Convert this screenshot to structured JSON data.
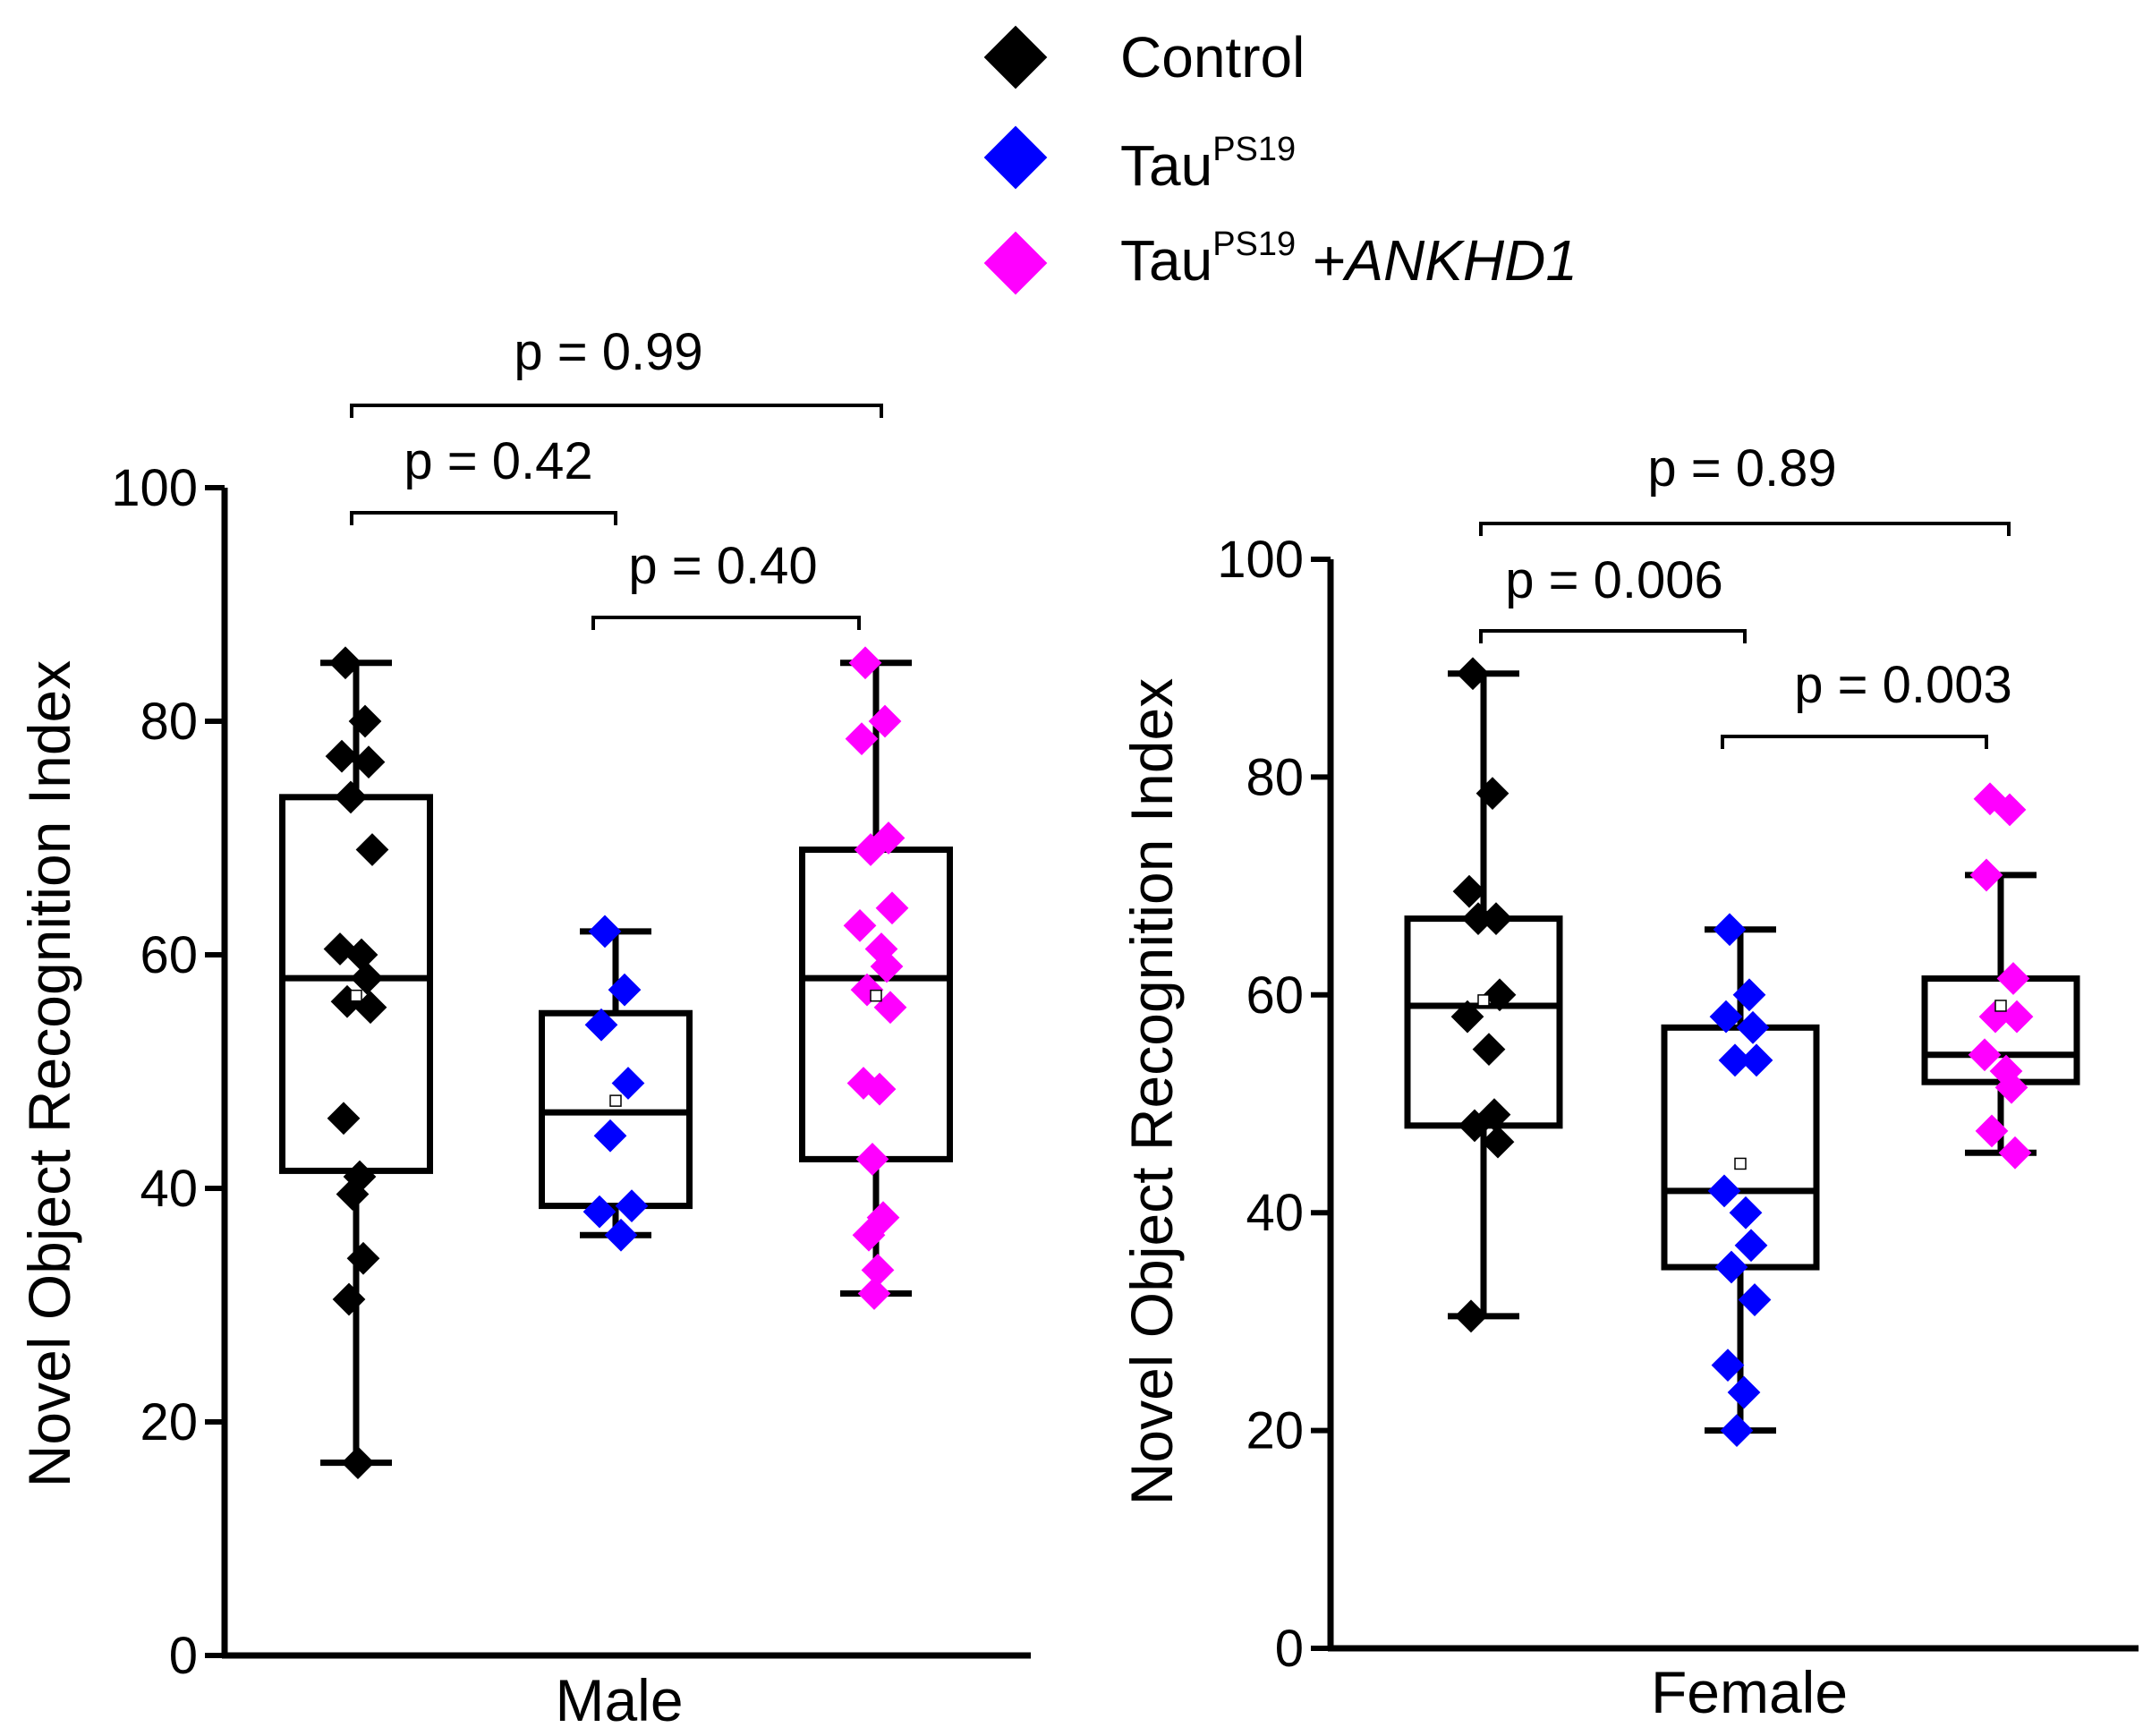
{
  "legend": [
    {
      "label": "Control",
      "sup": "",
      "suffix": "",
      "color": "#000000"
    },
    {
      "label": "Tau",
      "sup": "PS19",
      "suffix": "",
      "color": "#0000ff"
    },
    {
      "label": "Tau",
      "sup": "PS19",
      "suffix": " +ANKHD1",
      "color": "#ff00ff"
    }
  ],
  "chart_data": [
    {
      "type": "box",
      "title": "",
      "xlabel": "Male",
      "ylabel": "Novel Object Recognition Index",
      "ylim": [
        0,
        100
      ],
      "yticks": [
        0,
        20,
        40,
        60,
        80,
        100
      ],
      "series": [
        {
          "name": "Control",
          "color": "#000000",
          "box": {
            "min": 16.5,
            "q1": 41.5,
            "median": 58,
            "q3": 73.5,
            "max": 85,
            "mean": 56.5
          },
          "points": [
            85,
            80,
            77,
            76.5,
            73.5,
            69,
            60.5,
            60,
            58,
            56,
            55.5,
            46,
            41,
            39.5,
            34,
            30.5,
            16.5
          ]
        },
        {
          "name": "TauPS19",
          "color": "#0000ff",
          "box": {
            "min": 36,
            "q1": 38.5,
            "median": 46.5,
            "q3": 55,
            "max": 62,
            "mean": 47.5
          },
          "points": [
            62,
            57,
            54,
            49,
            44.5,
            38.5,
            38,
            36
          ]
        },
        {
          "name": "TauPS19 +ANKHD1",
          "color": "#ff00ff",
          "box": {
            "min": 31,
            "q1": 42.5,
            "median": 58,
            "q3": 69,
            "max": 85,
            "mean": 56.5
          },
          "points": [
            85,
            80,
            78.5,
            70,
            69,
            64,
            62.5,
            60.5,
            59,
            57,
            55.5,
            49,
            48.5,
            42.5,
            37.5,
            36,
            33,
            31
          ]
        }
      ],
      "comparisons": [
        {
          "label": "p = 0.99",
          "from": 0,
          "to": 2
        },
        {
          "label": "p = 0.42",
          "from": 0,
          "to": 1
        },
        {
          "label": "p = 0.40",
          "from": 1,
          "to": 2
        }
      ]
    },
    {
      "type": "box",
      "title": "",
      "xlabel": "Female",
      "ylabel": "Novel Object Recognition Index",
      "ylim": [
        0,
        100
      ],
      "yticks": [
        0,
        20,
        40,
        60,
        80,
        100
      ],
      "series": [
        {
          "name": "Control",
          "color": "#000000",
          "box": {
            "min": 30.5,
            "q1": 48,
            "median": 59,
            "q3": 67,
            "max": 89.5,
            "mean": 59.5
          },
          "points": [
            89.5,
            78.5,
            69.5,
            67,
            67,
            60,
            58,
            55,
            49,
            48,
            46.5,
            30.5
          ]
        },
        {
          "name": "TauPS19",
          "color": "#0000ff",
          "box": {
            "min": 20,
            "q1": 35,
            "median": 42,
            "q3": 57,
            "max": 66,
            "mean": 44.5
          },
          "points": [
            66,
            60,
            58,
            57,
            54,
            54,
            42,
            40,
            37,
            35,
            32,
            26,
            23.5,
            20
          ]
        },
        {
          "name": "TauPS19 +ANKHD1",
          "color": "#ff00ff",
          "box": {
            "min": 45.5,
            "q1": 52,
            "median": 54.5,
            "q3": 61.5,
            "max": 71,
            "mean": 59
          },
          "points": [
            78,
            77,
            71,
            61.5,
            58,
            58,
            54.5,
            53,
            51.5,
            47.5,
            45.5
          ]
        }
      ],
      "comparisons": [
        {
          "label": "p = 0.89",
          "from": 0,
          "to": 2
        },
        {
          "label": "p = 0.006",
          "from": 0,
          "to": 1
        },
        {
          "label": "p = 0.003",
          "from": 1,
          "to": 2
        }
      ]
    }
  ]
}
